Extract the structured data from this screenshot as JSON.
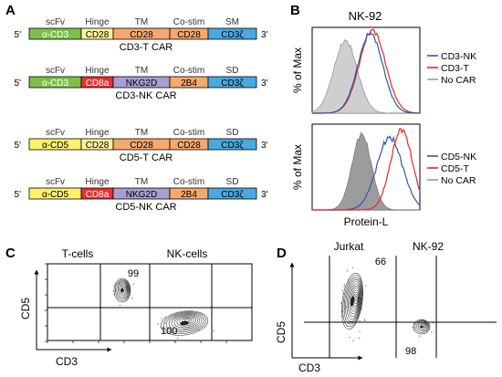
{
  "panels": {
    "A": {
      "letter": "A",
      "constructs": [
        {
          "name": "CD3-T CAR",
          "headers": [
            "scFv",
            "Hinge",
            "TM",
            "Co-stim",
            "SM"
          ],
          "segments": [
            "α-CD3",
            "CD28",
            "CD28",
            "CD28",
            "CD3ζ"
          ],
          "colors": [
            "#7cc04a",
            "#fff39b",
            "#f6a86e",
            "#f6a86e",
            "#4aa9df"
          ]
        },
        {
          "name": "CD3-NK CAR",
          "headers": [
            "scFv",
            "Hinge",
            "TM",
            "Co-stim",
            "SD"
          ],
          "segments": [
            "α-CD3",
            "CD8a",
            "NKG2D",
            "2B4",
            "CD3ζ"
          ],
          "colors": [
            "#7cc04a",
            "#e8312f",
            "#a79fd0",
            "#f6a86e",
            "#4aa9df"
          ]
        },
        {
          "name": "CD5-T CAR",
          "headers": [
            "scFv",
            "Hinge",
            "TM",
            "Co-stim",
            "SD"
          ],
          "segments": [
            "α-CD5",
            "CD28",
            "CD28",
            "CD28",
            "CD3ζ"
          ],
          "colors": [
            "#fff26a",
            "#fff39b",
            "#f6a86e",
            "#f6a86e",
            "#4aa9df"
          ]
        },
        {
          "name": "CD5-NK CAR",
          "headers": [
            "scFv",
            "Hinge",
            "TM",
            "Co-stim",
            "SD"
          ],
          "segments": [
            "α-CD5",
            "CD8a",
            "NKG2D",
            "2B4",
            "CD3ζ"
          ],
          "colors": [
            "#fff26a",
            "#e8312f",
            "#a79fd0",
            "#f6a86e",
            "#4aa9df"
          ]
        }
      ],
      "end5": "5'",
      "end3": "3'"
    },
    "B": {
      "letter": "B",
      "title": "NK-92",
      "ylabel": "% of Max",
      "xlabel": "Protein-L",
      "top_legend": [
        {
          "label": "CD3-NK",
          "color": "#2e56a8"
        },
        {
          "label": "CD3-T",
          "color": "#e02a2a"
        },
        {
          "label": "No CAR",
          "color": "#999999"
        }
      ],
      "bottom_legend": [
        {
          "label": "CD5-NK",
          "color": "#2e56a8"
        },
        {
          "label": "CD5-T",
          "color": "#e02a2a"
        },
        {
          "label": "No CAR",
          "color": "#999999"
        }
      ]
    },
    "C": {
      "letter": "C",
      "xlabel": "CD3",
      "ylabel": "CD5",
      "plots": [
        {
          "title": "T-cells",
          "value": "99"
        },
        {
          "title": "NK-cells",
          "value": "100"
        }
      ]
    },
    "D": {
      "letter": "D",
      "xlabel": "CD3",
      "ylabel": "CD5",
      "plots": [
        {
          "title": "Jurkat",
          "value": "66"
        },
        {
          "title": "NK-92",
          "value": "98"
        }
      ]
    }
  }
}
